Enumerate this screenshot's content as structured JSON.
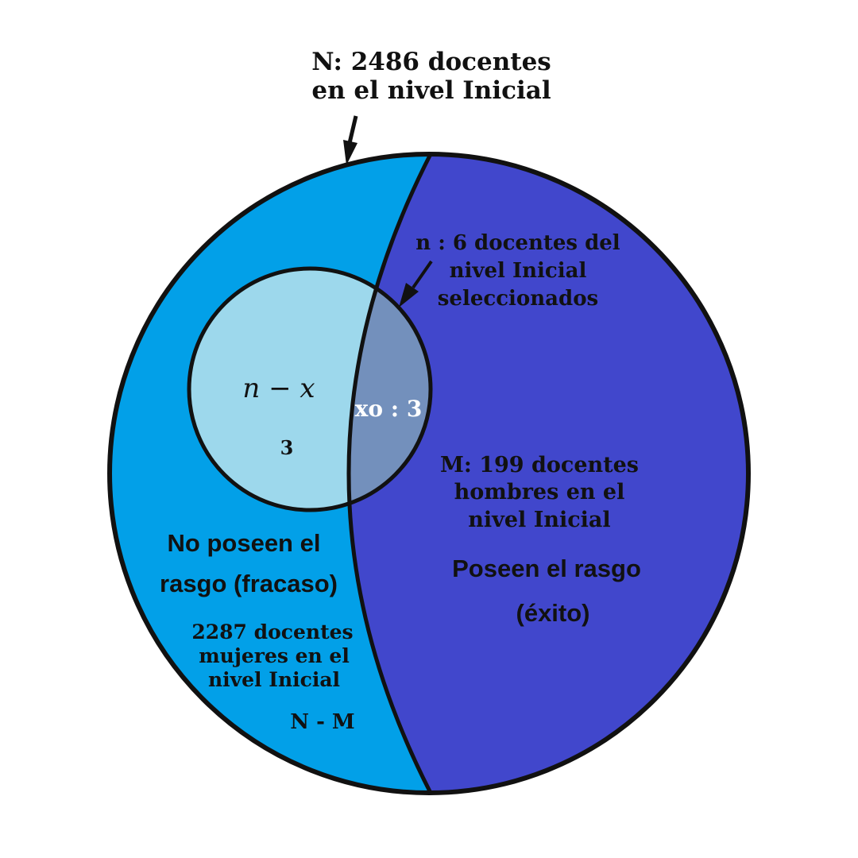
{
  "population": {
    "label_line1": "N: 2486 docentes",
    "label_line2": "en el nivel Inicial"
  },
  "sample": {
    "label_line1": "n : 6 docentes del",
    "label_line2": "nivel Inicial",
    "label_line3": "seleccionados"
  },
  "success": {
    "count_line1": "M: 199 docentes",
    "count_line2": "hombres  en el",
    "count_line3": "nivel Inicial",
    "title_line1": "Poseen el rasgo",
    "title_line2": "(éxito)"
  },
  "failure": {
    "title_line1": "No poseen el",
    "title_line2": "rasgo (fracaso)",
    "count_line1": "2287 docentes",
    "count_line2": "mujeres en el",
    "count_line3": "nivel Inicial",
    "formula": "N - M"
  },
  "sample_failure": {
    "formula": "n − x",
    "value": "3"
  },
  "sample_success": {
    "label": "xo : 3"
  },
  "colors": {
    "failure_region": "#02A0E8",
    "success_region": "#4147CC",
    "sample_failure": "#9DD8EC",
    "sample_success": "#7390BC",
    "outline": "#111111"
  }
}
